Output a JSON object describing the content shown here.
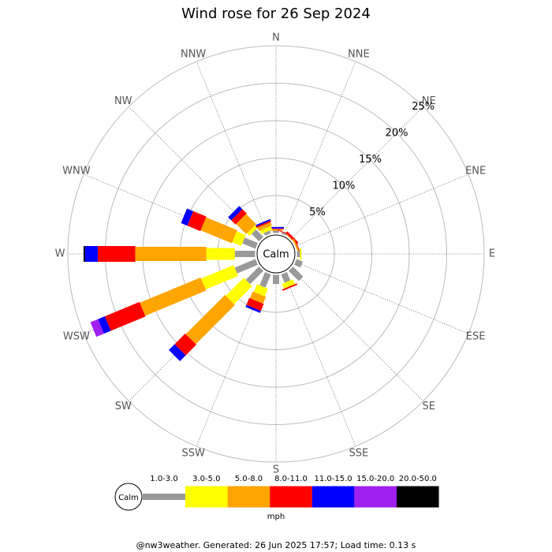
{
  "chart_data": {
    "type": "wind-rose",
    "title": "Wind rose for 26 Sep 2024",
    "categories": [
      "N",
      "NNE",
      "NE",
      "ENE",
      "E",
      "ESE",
      "SE",
      "SSE",
      "S",
      "SSW",
      "SW",
      "WSW",
      "W",
      "WNW",
      "NW",
      "NNW"
    ],
    "calm_label": "Calm",
    "units": "mph",
    "rlim": [
      0,
      25
    ],
    "rticks": [
      {
        "value": 5,
        "label": "5%"
      },
      {
        "value": 10,
        "label": "10%"
      },
      {
        "value": 15,
        "label": "15%"
      },
      {
        "value": 20,
        "label": "20%"
      },
      {
        "value": 25,
        "label": "25%"
      }
    ],
    "series": [
      {
        "name": "1.0-3.0",
        "color": "#999999",
        "values": [
          0.3,
          0.2,
          0,
          0,
          0.4,
          0.9,
          1.9,
          1.2,
          1.2,
          1.9,
          2.5,
          3.0,
          2.7,
          1.9,
          1.4,
          0.4
        ]
      },
      {
        "name": "3.0-5.0",
        "color": "#ffff00",
        "values": [
          0,
          0,
          0,
          0,
          0.2,
          0,
          0,
          0.7,
          0,
          1.1,
          3.4,
          4.7,
          3.8,
          1.3,
          0.5,
          0.5
        ]
      },
      {
        "name": "5.0-8.0",
        "color": "#ffa500",
        "values": [
          0.2,
          0,
          0.1,
          0.2,
          0,
          0,
          0,
          0,
          0,
          1.0,
          7.4,
          8.8,
          9.5,
          4.5,
          1.9,
          0.5
        ]
      },
      {
        "name": "8.0-11.0",
        "color": "#ff0000",
        "values": [
          0.1,
          0.1,
          0.3,
          0.1,
          0,
          0,
          0,
          0.2,
          0,
          1.0,
          2.0,
          5.0,
          5.0,
          1.9,
          0.8,
          0.2
        ]
      },
      {
        "name": "11.0-15.0",
        "color": "#0000ff",
        "values": [
          0.2,
          0,
          0,
          0,
          0,
          0,
          0,
          0,
          0,
          0.3,
          1.1,
          1.0,
          1.7,
          0.9,
          0.6,
          0.2
        ]
      },
      {
        "name": "15.0-20.0",
        "color": "#a020f0",
        "values": [
          0,
          0,
          0,
          0,
          0,
          0,
          0,
          0,
          0,
          0,
          0,
          1.1,
          0,
          0,
          0,
          0
        ]
      },
      {
        "name": "20.0-50.0",
        "color": "#000000",
        "values": [
          0,
          0,
          0,
          0,
          0,
          0,
          0,
          0,
          0,
          0,
          0,
          0,
          0.2,
          0,
          0,
          0
        ]
      }
    ],
    "footer": "@nw3weather. Generated: 26 Jun 2025 17:57; Load time: 0.13 s"
  }
}
